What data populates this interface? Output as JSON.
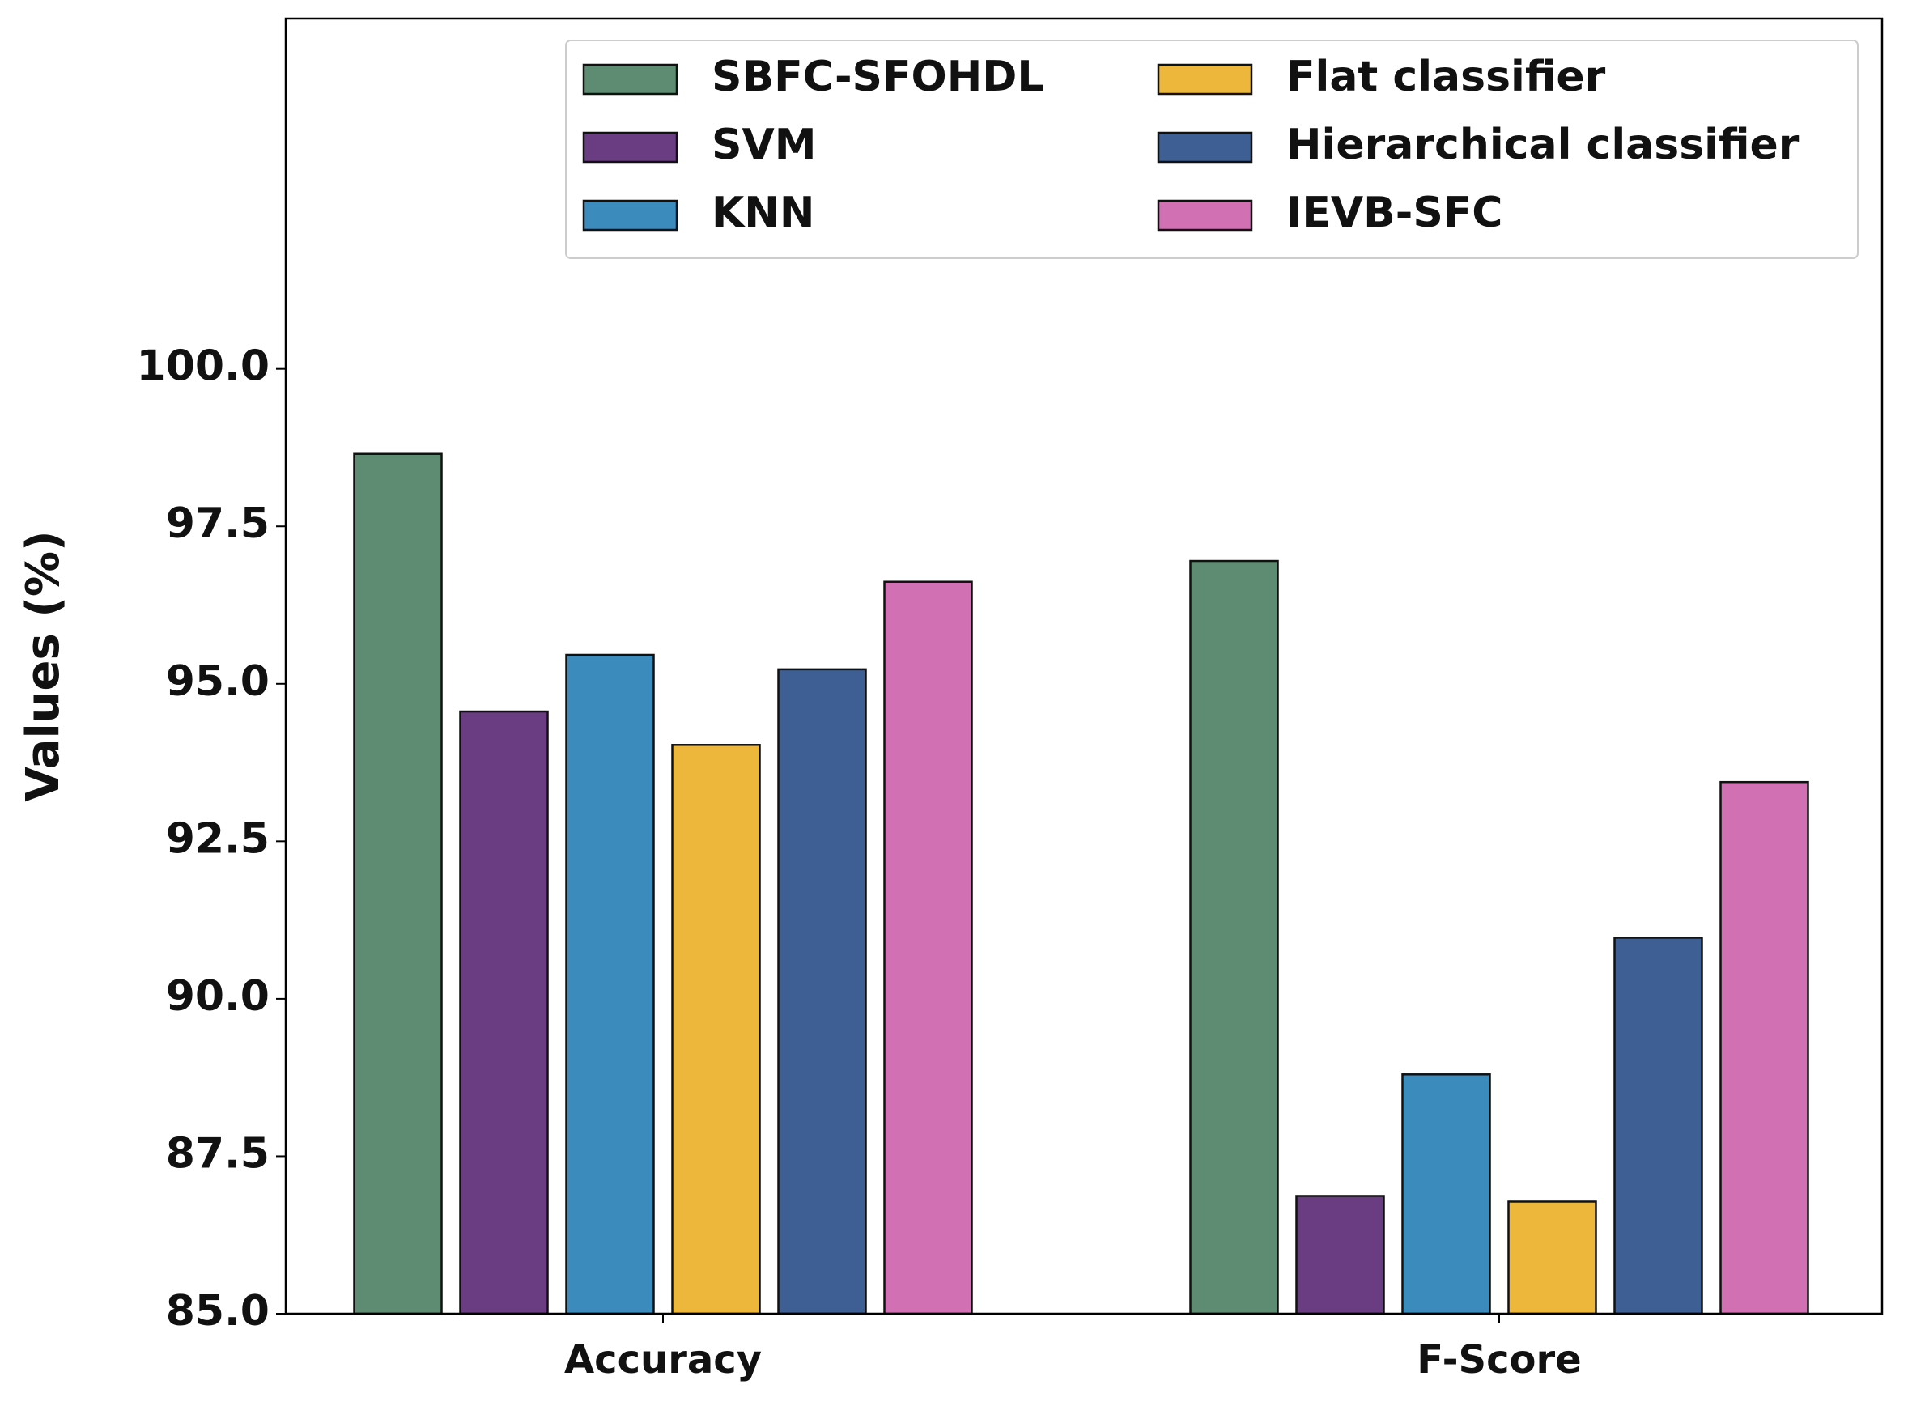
{
  "chart_data": {
    "type": "bar",
    "y_label": "Values (%)",
    "categories": [
      "Accuracy",
      "F-Score"
    ],
    "series": [
      {
        "name": "SBFC-SFOHDL",
        "color": "#5e8c73",
        "values": [
          98.65,
          96.95
        ]
      },
      {
        "name": "SVM",
        "color": "#6a3d83",
        "values": [
          94.56,
          86.87
        ]
      },
      {
        "name": "KNN",
        "color": "#3b8bbd",
        "values": [
          95.46,
          88.8
        ]
      },
      {
        "name": "Flat classifier",
        "color": "#ecb73a",
        "values": [
          94.03,
          86.78
        ]
      },
      {
        "name": "Hierarchical classifier",
        "color": "#3e5f94",
        "values": [
          95.23,
          90.97
        ]
      },
      {
        "name": "IEVB-SFC",
        "color": "#d171b3",
        "values": [
          96.62,
          93.44
        ]
      }
    ],
    "ylim": [
      85,
      105.56
    ],
    "yticks": [
      {
        "value": 85,
        "label": "85.0"
      },
      87.5,
      {
        "value": 90,
        "label": "90.0"
      },
      92.5,
      {
        "value": 95,
        "label": "95.0"
      },
      97.5,
      {
        "value": 100,
        "label": "100.0"
      }
    ],
    "legend": "upper right",
    "legend_columns": 2
  }
}
